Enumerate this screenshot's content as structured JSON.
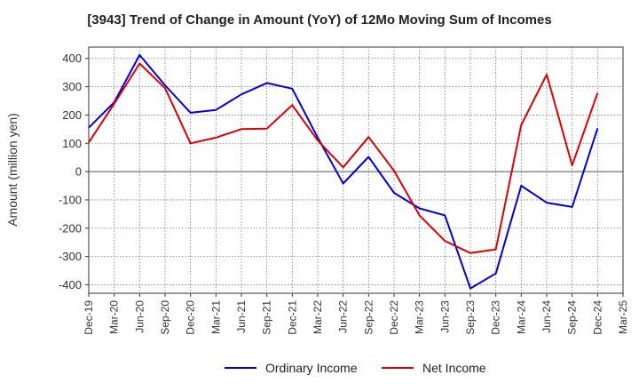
{
  "chart_data": {
    "type": "line",
    "title": "[3943]  Trend of Change in Amount (YoY) of 12Mo Moving Sum of Incomes",
    "ylabel": "Amount (million yen)",
    "xlabel": "",
    "ylim": [
      -430,
      440
    ],
    "yticks": [
      400,
      300,
      200,
      100,
      0,
      -100,
      -200,
      -300,
      -400
    ],
    "categories": [
      "Dec-19",
      "Mar-20",
      "Jun-20",
      "Sep-20",
      "Dec-20",
      "Mar-21",
      "Jun-21",
      "Sep-21",
      "Dec-21",
      "Mar-22",
      "Jun-22",
      "Sep-22",
      "Dec-22",
      "Mar-23",
      "Jun-23",
      "Sep-23",
      "Dec-23",
      "Mar-24",
      "Jun-24",
      "Sep-24",
      "Dec-24",
      "Mar-25"
    ],
    "grid": true,
    "legend_position": "bottom",
    "series": [
      {
        "name": "Ordinary Income",
        "color": "#0000dd",
        "values": [
          155,
          245,
          412,
          305,
          208,
          218,
          273,
          313,
          293,
          120,
          -42,
          52,
          -75,
          -130,
          -155,
          -413,
          -360,
          -50,
          -110,
          -125,
          153,
          null
        ]
      },
      {
        "name": "Net Income",
        "color": "#dd0000",
        "values": [
          103,
          240,
          382,
          295,
          100,
          120,
          150,
          152,
          235,
          110,
          15,
          122,
          3,
          -155,
          -245,
          -288,
          -275,
          165,
          343,
          22,
          278,
          null
        ]
      }
    ]
  }
}
